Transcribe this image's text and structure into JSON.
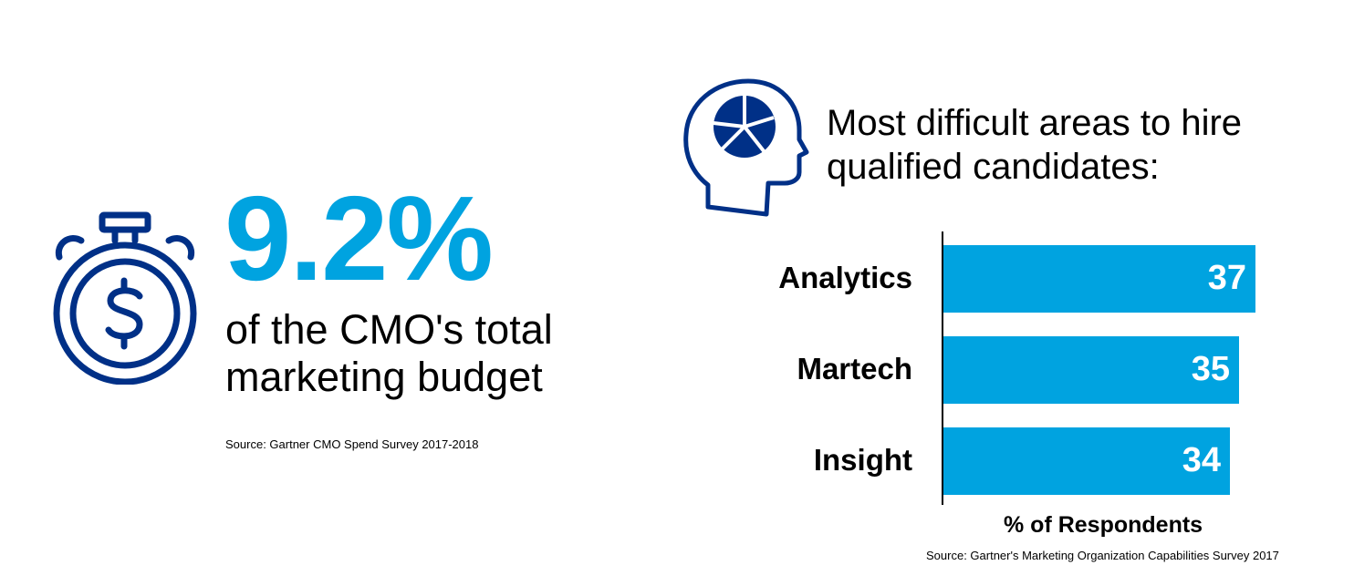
{
  "stat": {
    "value": "9.2%",
    "description": "of the CMO's total marketing budget",
    "source": "Source: Gartner CMO Spend Survey 2017-2018"
  },
  "icons": {
    "stat_icon": "stopwatch-dollar-icon",
    "chart_icon": "head-pie-chart-icon"
  },
  "colors": {
    "accent": "#00a3e0",
    "icon": "#003087"
  },
  "chart_data": {
    "type": "bar",
    "orientation": "horizontal",
    "title": "Most difficult areas to hire qualified candidates:",
    "categories": [
      "Analytics",
      "Martech",
      "Insight"
    ],
    "values": [
      37,
      35,
      34
    ],
    "xlabel": "% of Respondents",
    "ylabel": "",
    "xlim": [
      0,
      37
    ],
    "grid": false,
    "source": "Source: Gartner's Marketing Organization Capabilities Survey 2017"
  }
}
